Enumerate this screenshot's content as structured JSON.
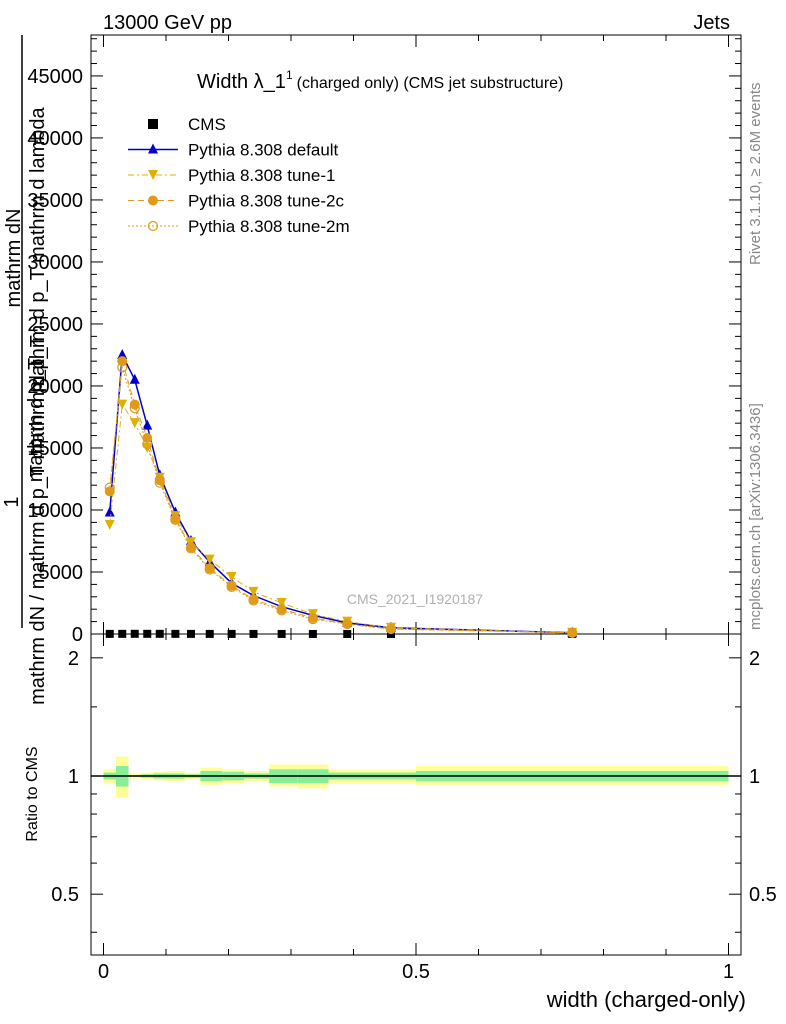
{
  "header": {
    "left": "13000 GeV pp",
    "right": "Jets"
  },
  "plot_title": {
    "main": "Width λ_1",
    "sup": "1",
    "sub": "(charged only) (CMS jet substructure)"
  },
  "side_labels": {
    "rivet": "Rivet 3.1.10, ≥ 2.6M events",
    "mcplots": "mcplots.cern.ch [arXiv:1306.3436]"
  },
  "watermark": "CMS_2021_I1920187",
  "yaxis_main": {
    "line1": "1",
    "num1": "mathrm dN",
    "den1": "mathrm d p_T mathrm d lambda",
    "num2": "mathrm d p_T",
    "den2": "mathrm dN / mathrm d p_T mathrm d p_T",
    "ticks": [
      "0",
      "5000",
      "10000",
      "15000",
      "20000",
      "25000",
      "30000",
      "35000",
      "40000",
      "45000"
    ]
  },
  "yaxis_ratio": {
    "label": "Ratio to CMS",
    "ticks_left": [
      "0.5",
      "1",
      "2"
    ],
    "ticks_right": [
      "0.5",
      "1",
      "2"
    ]
  },
  "xaxis": {
    "label": "width (charged-only)",
    "ticks": [
      "0",
      "0.5",
      "1"
    ]
  },
  "legend": [
    {
      "label": "CMS",
      "color": "#000000",
      "marker": "square"
    },
    {
      "label": "Pythia 8.308 default",
      "color": "#0000cc",
      "marker": "triangle-up"
    },
    {
      "label": "Pythia 8.308 tune-1",
      "color": "#e0b000",
      "marker": "triangle-down"
    },
    {
      "label": "Pythia 8.308 tune-2c",
      "color": "#e09a1a",
      "marker": "circle"
    },
    {
      "label": "Pythia 8.308 tune-2m",
      "color": "#e09a1a",
      "marker": "open-circle"
    }
  ],
  "chart_data": {
    "type": "line",
    "x": [
      0.01,
      0.03,
      0.05,
      0.07,
      0.09,
      0.115,
      0.14,
      0.17,
      0.205,
      0.24,
      0.285,
      0.335,
      0.39,
      0.46,
      0.75
    ],
    "xlim": [
      -0.02,
      1.02
    ],
    "ylim_main": [
      0,
      48300
    ],
    "ylim_ratio": [
      0.35,
      2.3
    ],
    "series": [
      {
        "name": "CMS",
        "values": [
          10,
          12,
          15,
          14,
          12,
          10,
          9,
          7,
          6,
          5,
          4,
          3,
          2,
          1,
          0.2
        ]
      },
      {
        "name": "Pythia 8.308 default",
        "values": [
          9800,
          22500,
          20500,
          16800,
          12800,
          9800,
          7500,
          5800,
          4100,
          3100,
          2200,
          1500,
          900,
          500,
          100
        ]
      },
      {
        "name": "Pythia 8.308 tune-1",
        "values": [
          8800,
          18500,
          17000,
          15000,
          12600,
          9500,
          7400,
          6000,
          4600,
          3400,
          2500,
          1600,
          1000,
          500,
          100
        ]
      },
      {
        "name": "Pythia 8.308 tune-2c",
        "values": [
          11500,
          22000,
          18500,
          15800,
          12400,
          9300,
          7000,
          5300,
          3900,
          2800,
          2000,
          1300,
          800,
          400,
          100
        ]
      },
      {
        "name": "Pythia 8.308 tune-2m",
        "values": [
          11800,
          21500,
          18200,
          15300,
          12200,
          9200,
          6900,
          5200,
          3800,
          2700,
          1900,
          1200,
          800,
          400,
          100
        ]
      }
    ],
    "ratio_bands": {
      "x_edges": [
        0.0,
        0.02,
        0.04,
        0.06,
        0.08,
        0.1,
        0.13,
        0.155,
        0.19,
        0.225,
        0.265,
        0.31,
        0.36,
        0.42,
        0.5,
        1.0
      ],
      "yellow": [
        [
          0.96,
          1.04
        ],
        [
          0.88,
          1.12
        ],
        [
          0.985,
          1.015
        ],
        [
          0.98,
          1.02
        ],
        [
          0.975,
          1.025
        ],
        [
          0.97,
          1.03
        ],
        [
          0.98,
          1.02
        ],
        [
          0.95,
          1.05
        ],
        [
          0.96,
          1.04
        ],
        [
          0.97,
          1.03
        ],
        [
          0.94,
          1.07
        ],
        [
          0.93,
          1.07
        ],
        [
          0.96,
          1.04
        ],
        [
          0.96,
          1.04
        ],
        [
          0.95,
          1.06
        ],
        [
          0.95,
          1.06
        ]
      ],
      "green": [
        [
          0.98,
          1.02
        ],
        [
          0.94,
          1.06
        ],
        [
          0.995,
          1.005
        ],
        [
          0.99,
          1.01
        ],
        [
          0.985,
          1.015
        ],
        [
          0.985,
          1.015
        ],
        [
          0.99,
          1.01
        ],
        [
          0.97,
          1.03
        ],
        [
          0.975,
          1.025
        ],
        [
          0.985,
          1.015
        ],
        [
          0.96,
          1.04
        ],
        [
          0.96,
          1.04
        ],
        [
          0.98,
          1.02
        ],
        [
          0.98,
          1.02
        ],
        [
          0.97,
          1.03
        ],
        [
          0.97,
          1.03
        ]
      ]
    },
    "ratio_ref": 1
  }
}
